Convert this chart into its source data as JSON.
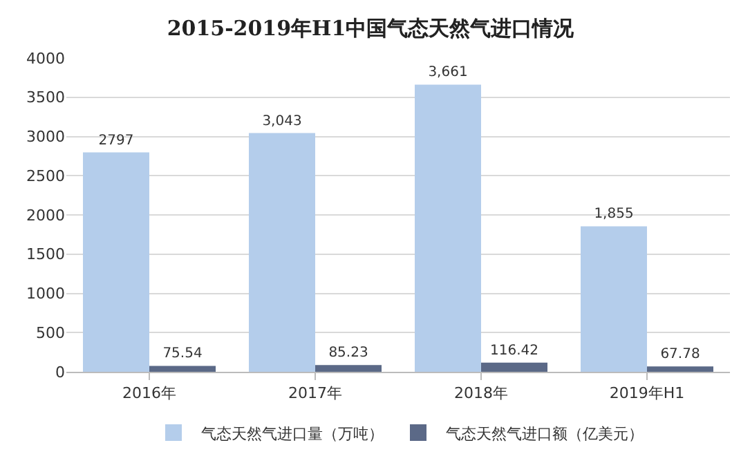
{
  "chart_data": {
    "type": "bar",
    "title": "2015-2019年H1中国气态天然气进口情况",
    "categories": [
      "2016年",
      "2017年",
      "2018年",
      "2019年H1"
    ],
    "series": [
      {
        "name": "气态天然气进口量（万吨）",
        "color": "#b4cdeb",
        "values": [
          2797,
          3043,
          3661,
          1855
        ],
        "value_labels": [
          "2797",
          "3,043",
          "3,661",
          "1,855"
        ]
      },
      {
        "name": "气态天然气进口额（亿美元）",
        "color": "#5b6987",
        "values": [
          75.54,
          85.23,
          116.42,
          67.78
        ],
        "value_labels": [
          "75.54",
          "85.23",
          "116.42",
          "67.78"
        ]
      }
    ],
    "ylim": [
      0,
      4000
    ],
    "yticks": [
      0,
      500,
      1000,
      1500,
      2000,
      2500,
      3000,
      3500,
      4000
    ],
    "grid": "y",
    "legend": "bottom"
  }
}
